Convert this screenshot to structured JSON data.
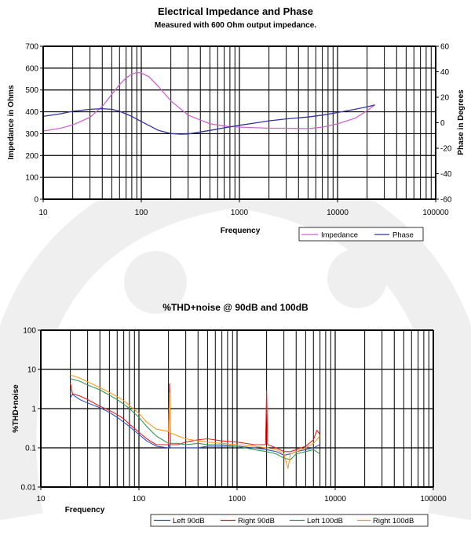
{
  "chart_data": [
    {
      "type": "line",
      "title": "Electrical Impedance and Phase",
      "subtitle": "Measured with 600 Ohm output impedance.",
      "xlabel": "Frequency",
      "ylabel": "Impedance in Ohms",
      "y2label": "Phase in Degrees",
      "xscale": "log",
      "xlim": [
        10,
        100000
      ],
      "ylim": [
        0,
        700
      ],
      "y2lim": [
        -60,
        60
      ],
      "grid": true,
      "legend_position": "bottom-right",
      "x_ticks": [
        "10",
        "100",
        "1000",
        "10000",
        "100000"
      ],
      "y_ticks": [
        "0",
        "100",
        "200",
        "300",
        "400",
        "500",
        "600",
        "700"
      ],
      "y2_ticks": [
        "-60",
        "-40",
        "-20",
        "0",
        "20",
        "40",
        "60"
      ],
      "series": [
        {
          "name": "Impedance",
          "axis": "left",
          "color": "#cc66cc",
          "x": [
            10,
            15,
            20,
            30,
            40,
            50,
            60,
            70,
            80,
            90,
            100,
            120,
            150,
            200,
            300,
            500,
            700,
            1000,
            1500,
            2000,
            3000,
            5000,
            7000,
            10000,
            15000,
            20000,
            24000
          ],
          "y": [
            312,
            325,
            340,
            375,
            425,
            480,
            525,
            555,
            572,
            580,
            578,
            560,
            515,
            450,
            385,
            345,
            335,
            330,
            327,
            325,
            325,
            323,
            330,
            345,
            370,
            405,
            432
          ]
        },
        {
          "name": "Phase",
          "axis": "right",
          "color": "#333399",
          "x": [
            10,
            15,
            20,
            30,
            40,
            50,
            60,
            80,
            100,
            150,
            200,
            250,
            300,
            500,
            700,
            1000,
            1500,
            2000,
            3000,
            5000,
            7000,
            10000,
            15000,
            20000,
            24000
          ],
          "y": [
            5,
            7,
            9,
            10.5,
            11,
            10.5,
            9,
            5,
            1,
            -6,
            -8.5,
            -9,
            -8.8,
            -6,
            -4,
            -2,
            0,
            1.5,
            3,
            4.5,
            6,
            8,
            10.5,
            12.5,
            14
          ]
        }
      ]
    },
    {
      "type": "line",
      "title": "%THD+noise @ 90dB and 100dB",
      "xlabel": "Frequency",
      "ylabel": "%THD+noise",
      "xscale": "log",
      "yscale": "log",
      "xlim": [
        10,
        100000
      ],
      "ylim": [
        0.01,
        100
      ],
      "grid": true,
      "legend_position": "bottom",
      "x_ticks": [
        "10",
        "100",
        "1000",
        "10000",
        "100000"
      ],
      "y_ticks": [
        "0.01",
        "0.1",
        "1",
        "10",
        "100"
      ],
      "series": [
        {
          "name": "Left 90dB",
          "color": "#3355bb",
          "x": [
            20,
            21,
            25,
            30,
            40,
            50,
            60,
            70,
            80,
            100,
            120,
            150,
            200,
            205,
            210,
            250,
            300,
            400,
            500,
            700,
            1000,
            1500,
            2000,
            2500,
            3000,
            3500,
            4000,
            5000,
            6000,
            7000
          ],
          "y": [
            1.9,
            2.3,
            1.7,
            1.4,
            1.05,
            0.8,
            0.6,
            0.45,
            0.35,
            0.22,
            0.15,
            0.11,
            0.1,
            0.12,
            0.1,
            0.1,
            0.1,
            0.1,
            0.11,
            0.11,
            0.11,
            0.1,
            0.09,
            0.08,
            0.065,
            0.07,
            0.08,
            0.09,
            0.1,
            0.12
          ]
        },
        {
          "name": "Right 90dB",
          "color": "#dd2222",
          "x": [
            20,
            21,
            25,
            30,
            40,
            50,
            60,
            70,
            80,
            100,
            120,
            150,
            200,
            205,
            210,
            250,
            300,
            400,
            500,
            700,
            1000,
            1500,
            1950,
            2000,
            2050,
            2500,
            3000,
            3500,
            4000,
            5000,
            6000,
            6500,
            7000
          ],
          "y": [
            4.5,
            2.4,
            2.1,
            1.7,
            1.15,
            0.9,
            0.7,
            0.55,
            0.4,
            0.25,
            0.17,
            0.12,
            0.12,
            4.3,
            0.12,
            0.12,
            0.14,
            0.16,
            0.17,
            0.15,
            0.14,
            0.12,
            0.12,
            2.8,
            0.12,
            0.1,
            0.08,
            0.08,
            0.09,
            0.11,
            0.16,
            0.28,
            0.22
          ]
        },
        {
          "name": "Left 100dB",
          "color": "#339955",
          "x": [
            20,
            25,
            30,
            40,
            50,
            60,
            70,
            80,
            100,
            120,
            150,
            200,
            250,
            300,
            400,
            500,
            700,
            1000,
            1500,
            2000,
            2500,
            3000,
            3500,
            4000,
            5000,
            6000,
            7000
          ],
          "y": [
            5.8,
            5.0,
            4.0,
            3.0,
            2.2,
            1.7,
            1.3,
            1.0,
            0.6,
            0.35,
            0.2,
            0.13,
            0.13,
            0.12,
            0.13,
            0.12,
            0.12,
            0.11,
            0.09,
            0.08,
            0.07,
            0.055,
            0.05,
            0.07,
            0.08,
            0.09,
            0.07
          ]
        },
        {
          "name": "Right 100dB",
          "color": "#ff9922",
          "x": [
            20,
            25,
            30,
            40,
            50,
            60,
            70,
            80,
            100,
            120,
            150,
            200,
            205,
            210,
            250,
            300,
            400,
            500,
            700,
            1000,
            1500,
            2000,
            2500,
            3000,
            3300,
            3500,
            4000,
            5000,
            6000,
            7000
          ],
          "y": [
            7.2,
            6.0,
            4.8,
            3.4,
            2.6,
            2.0,
            1.6,
            1.2,
            0.75,
            0.45,
            0.3,
            0.26,
            2.5,
            0.24,
            0.2,
            0.17,
            0.15,
            0.14,
            0.13,
            0.12,
            0.11,
            0.1,
            0.09,
            0.07,
            0.03,
            0.07,
            0.08,
            0.1,
            0.13,
            0.2
          ]
        }
      ]
    }
  ]
}
